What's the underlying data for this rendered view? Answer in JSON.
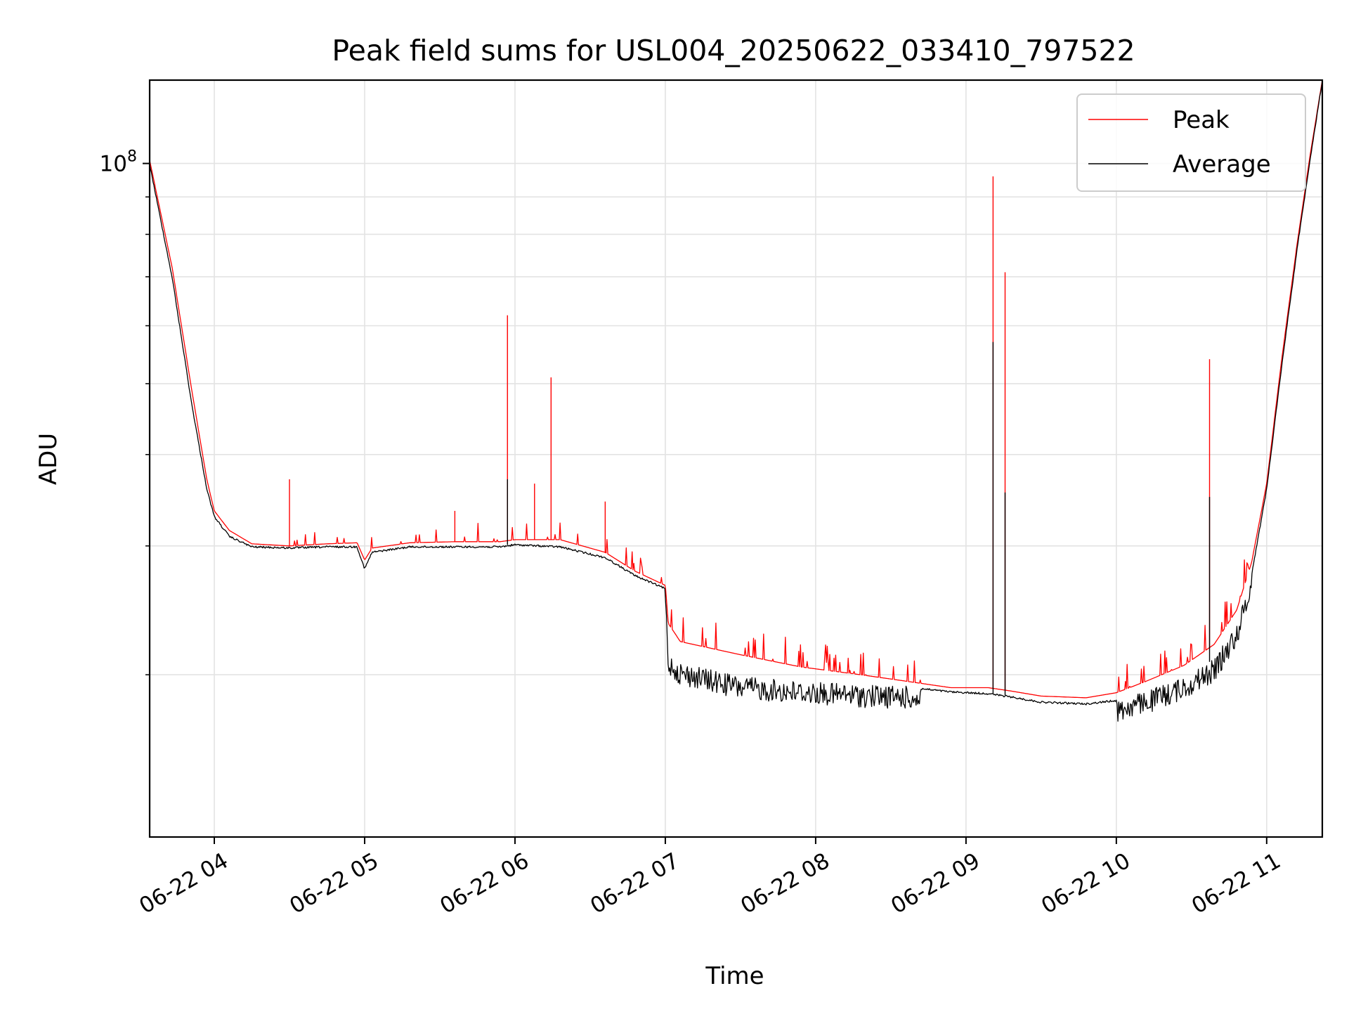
{
  "chart_data": {
    "type": "line",
    "title": "Peak field sums for USL004_20250622_033410_797522",
    "xlabel": "Time",
    "ylabel": "ADU",
    "yscale": "log",
    "grid": true,
    "legend_position": "top-right",
    "xlim": [
      3.57,
      11.37
    ],
    "ylim": [
      12000000,
      130000000
    ],
    "x_ticks": [
      {
        "value": 4,
        "label": "06-22 04"
      },
      {
        "value": 5,
        "label": "06-22 05"
      },
      {
        "value": 6,
        "label": "06-22 06"
      },
      {
        "value": 7,
        "label": "06-22 07"
      },
      {
        "value": 8,
        "label": "06-22 08"
      },
      {
        "value": 9,
        "label": "06-22 09"
      },
      {
        "value": 10,
        "label": "06-22 10"
      },
      {
        "value": 11,
        "label": "06-22 11"
      }
    ],
    "y_major_ticks": [
      {
        "value": 100000000,
        "label_base": "10",
        "label_exp": "8"
      }
    ],
    "y_minor_ticks": [
      20000000,
      30000000,
      40000000,
      50000000,
      60000000,
      70000000,
      80000000,
      90000000
    ],
    "x_unit": "hour of 2025-06-22",
    "series": [
      {
        "name": "Peak",
        "color": "#ff0000",
        "points": [
          [
            3.57,
            101000000
          ],
          [
            3.72,
            72000000
          ],
          [
            3.85,
            49000000
          ],
          [
            3.95,
            37000000
          ],
          [
            4.0,
            33500000
          ],
          [
            4.1,
            31500000
          ],
          [
            4.25,
            30200000
          ],
          [
            4.5,
            30000000
          ],
          [
            4.75,
            30200000
          ],
          [
            4.95,
            30300000
          ],
          [
            5.0,
            28700000
          ],
          [
            5.05,
            29800000
          ],
          [
            5.3,
            30300000
          ],
          [
            5.6,
            30400000
          ],
          [
            5.9,
            30400000
          ],
          [
            6.0,
            30600000
          ],
          [
            6.3,
            30600000
          ],
          [
            6.6,
            29400000
          ],
          [
            6.8,
            27700000
          ],
          [
            7.0,
            26500000
          ],
          [
            7.02,
            23500000
          ],
          [
            7.1,
            22200000
          ],
          [
            7.5,
            21300000
          ],
          [
            7.9,
            20500000
          ],
          [
            8.3,
            20000000
          ],
          [
            8.6,
            19600000
          ],
          [
            8.9,
            19200000
          ],
          [
            9.15,
            19200000
          ],
          [
            9.3,
            19000000
          ],
          [
            9.5,
            18700000
          ],
          [
            9.8,
            18600000
          ],
          [
            10.0,
            18900000
          ],
          [
            10.2,
            19600000
          ],
          [
            10.45,
            20600000
          ],
          [
            10.65,
            22000000
          ],
          [
            10.8,
            24500000
          ],
          [
            10.9,
            28500000
          ],
          [
            11.0,
            36500000
          ],
          [
            11.1,
            54000000
          ],
          [
            11.2,
            77000000
          ],
          [
            11.29,
            103000000
          ],
          [
            11.37,
            130000000
          ]
        ],
        "spikes": [
          [
            4.5,
            37000000
          ],
          [
            5.6,
            33500000
          ],
          [
            5.95,
            62000000
          ],
          [
            6.13,
            36500000
          ],
          [
            6.24,
            51000000
          ],
          [
            6.6,
            34500000
          ],
          [
            9.18,
            96000000
          ],
          [
            9.26,
            71000000
          ],
          [
            10.62,
            54000000
          ]
        ]
      },
      {
        "name": "Average",
        "color": "#000000",
        "points": [
          [
            3.57,
            100000000
          ],
          [
            3.72,
            70000000
          ],
          [
            3.85,
            47000000
          ],
          [
            3.95,
            36000000
          ],
          [
            4.0,
            33000000
          ],
          [
            4.1,
            31000000
          ],
          [
            4.25,
            30000000
          ],
          [
            4.5,
            29900000
          ],
          [
            4.75,
            30000000
          ],
          [
            4.95,
            30000000
          ],
          [
            5.0,
            28000000
          ],
          [
            5.05,
            29500000
          ],
          [
            5.3,
            30000000
          ],
          [
            5.6,
            30000000
          ],
          [
            5.9,
            30000000
          ],
          [
            6.0,
            30200000
          ],
          [
            6.3,
            30000000
          ],
          [
            6.6,
            29000000
          ],
          [
            6.8,
            27400000
          ],
          [
            7.0,
            26300000
          ],
          [
            7.02,
            21500000
          ],
          [
            7.1,
            20800000
          ],
          [
            7.5,
            19900000
          ],
          [
            7.9,
            19600000
          ],
          [
            8.3,
            19400000
          ],
          [
            8.6,
            19300000
          ],
          [
            8.9,
            19000000
          ],
          [
            9.15,
            18900000
          ],
          [
            9.3,
            18700000
          ],
          [
            9.5,
            18400000
          ],
          [
            9.8,
            18300000
          ],
          [
            10.0,
            18500000
          ],
          [
            10.2,
            19000000
          ],
          [
            10.45,
            19900000
          ],
          [
            10.65,
            21000000
          ],
          [
            10.8,
            23500000
          ],
          [
            10.9,
            27500000
          ],
          [
            11.0,
            36000000
          ],
          [
            11.1,
            53000000
          ],
          [
            11.2,
            76000000
          ],
          [
            11.29,
            102000000
          ],
          [
            11.37,
            130000000
          ]
        ],
        "spikes": [
          [
            5.95,
            37000000
          ],
          [
            9.18,
            57000000
          ],
          [
            9.26,
            35500000
          ],
          [
            10.62,
            35000000
          ]
        ]
      }
    ]
  }
}
